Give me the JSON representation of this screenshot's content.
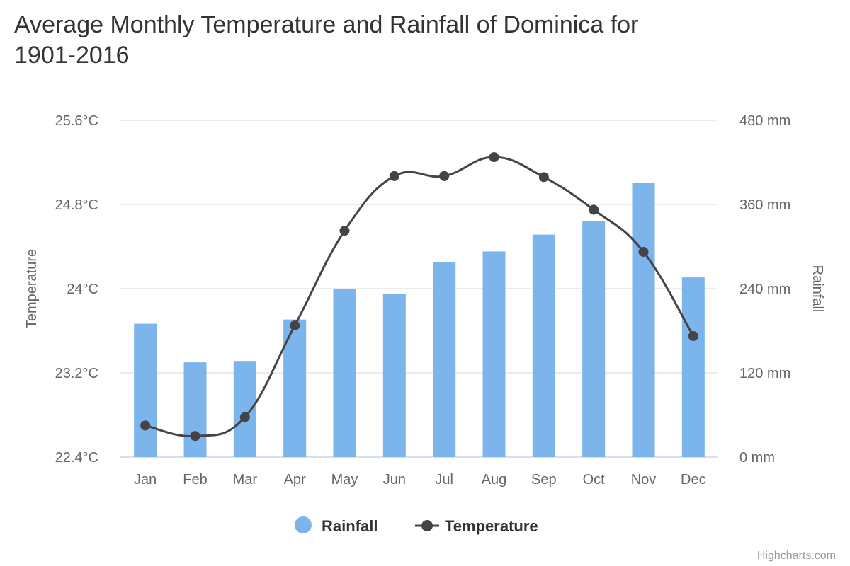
{
  "chart_data": {
    "type": "bar+line",
    "title": "Average Monthly Temperature and Rainfall of Dominica for 1901-2016",
    "title_lines": [
      "Average Monthly Temperature and Rainfall of Dominica for",
      "1901-2016"
    ],
    "categories": [
      "Jan",
      "Feb",
      "Mar",
      "Apr",
      "May",
      "Jun",
      "Jul",
      "Aug",
      "Sep",
      "Oct",
      "Nov",
      "Dec"
    ],
    "series": [
      {
        "name": "Rainfall",
        "type": "column",
        "axis": "right",
        "color": "#7cb5ec",
        "values": [
          190,
          135,
          137,
          196,
          240,
          232,
          278,
          293,
          317,
          336,
          391,
          256
        ]
      },
      {
        "name": "Temperature",
        "type": "spline",
        "axis": "left",
        "color": "#434348",
        "values": [
          22.7,
          22.6,
          22.78,
          23.65,
          24.55,
          25.07,
          25.07,
          25.25,
          25.06,
          24.75,
          24.35,
          23.55
        ]
      }
    ],
    "yAxisLeft": {
      "title": "Temperature",
      "min": 22.4,
      "max": 25.6,
      "ticks": [
        22.4,
        23.2,
        24,
        24.8,
        25.6
      ],
      "tick_labels": [
        "22.4°C",
        "23.2°C",
        "24°C",
        "24.8°C",
        "25.6°C"
      ]
    },
    "yAxisRight": {
      "title": "Rainfall",
      "min": 0,
      "max": 480,
      "ticks": [
        0,
        120,
        240,
        360,
        480
      ],
      "tick_labels": [
        "0 mm",
        "120 mm",
        "240 mm",
        "360 mm",
        "480 mm"
      ]
    },
    "grid": true,
    "legend_position": "bottom-center",
    "credits": "Highcharts.com"
  }
}
